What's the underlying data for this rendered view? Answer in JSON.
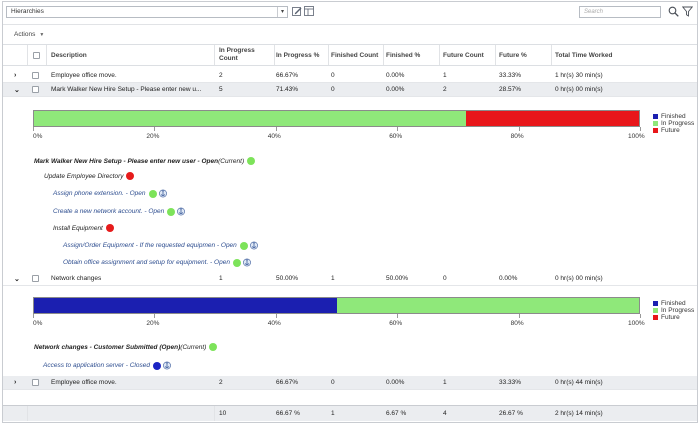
{
  "toolbar": {
    "hierarchy_value": "Hierarchies",
    "search_placeholder": "Search"
  },
  "actions_label": "Actions",
  "columns": {
    "description": "Description",
    "in_progress_count_1": "In Progress",
    "in_progress_count_2": "Count",
    "in_progress_pct": "In Progress %",
    "finished_count": "Finished Count",
    "finished_pct": "Finished %",
    "future_count": "Future Count",
    "future_pct": "Future %",
    "total_time": "Total Time Worked"
  },
  "rows": [
    {
      "expander": "›",
      "description": "Employee office move.",
      "in_progress_count": "2",
      "in_progress_pct": "66.67%",
      "finished_count": "0",
      "finished_pct": "0.00%",
      "future_count": "1",
      "future_pct": "33.33%",
      "total_time": "1 hr(s) 30 min(s)"
    },
    {
      "expander": "⌄",
      "description": "Mark Walker New Hire Setup - Please enter new u...",
      "in_progress_count": "5",
      "in_progress_pct": "71.43%",
      "finished_count": "0",
      "finished_pct": "0.00%",
      "future_count": "2",
      "future_pct": "28.57%",
      "total_time": "0 hr(s) 00 min(s)"
    },
    {
      "expander": "⌄",
      "description": "Network changes",
      "in_progress_count": "1",
      "in_progress_pct": "50.00%",
      "finished_count": "1",
      "finished_pct": "50.00%",
      "future_count": "0",
      "future_pct": "0.00%",
      "total_time": "0 hr(s) 00 min(s)"
    },
    {
      "expander": "›",
      "description": "Employee office move.",
      "in_progress_count": "2",
      "in_progress_pct": "66.67%",
      "finished_count": "0",
      "finished_pct": "0.00%",
      "future_count": "1",
      "future_pct": "33.33%",
      "total_time": "0 hr(s) 44 min(s)"
    }
  ],
  "totals": {
    "in_progress_count": "10",
    "in_progress_pct": "66.67 %",
    "finished_count": "1",
    "finished_pct": "6.67 %",
    "future_count": "4",
    "future_pct": "26.67 %",
    "total_time": "2 hr(s) 14 min(s)"
  },
  "colors": {
    "finished": "#1b1fb0",
    "in_progress": "#8fe87a",
    "future": "#e8161a",
    "dot_green": "#7de35a",
    "dot_red": "#e61b1b",
    "dot_blue": "#1b24c4"
  },
  "legend": {
    "finished": "Finished",
    "in_progress": "In Progress",
    "future": "Future"
  },
  "ticks": [
    "0%",
    "20%",
    "40%",
    "60%",
    "80%",
    "100%"
  ],
  "panel1": {
    "progress": {
      "finished": 0,
      "in_progress": 71.43,
      "future": 28.57
    },
    "tree": [
      {
        "label": "Mark Walker New Hire Setup - Please enter new user - Open",
        "suffix": " (Current)",
        "status": "green",
        "anchor": false
      },
      {
        "label": "Update Employee Directory",
        "suffix": "",
        "status": "red",
        "anchor": false
      },
      {
        "label": "Assign phone extension. - Open",
        "suffix": "",
        "status": "green",
        "anchor": true
      },
      {
        "label": "Create a new network account. - Open",
        "suffix": "",
        "status": "green",
        "anchor": true
      },
      {
        "label": "Install Equipment",
        "suffix": "",
        "status": "red",
        "anchor": false
      },
      {
        "label": "Assign/Order Equipment - If the requested equipmen - Open",
        "suffix": "",
        "status": "green",
        "anchor": true
      },
      {
        "label": "Obtain office assignment and setup for equipment. - Open",
        "suffix": "",
        "status": "green",
        "anchor": true
      }
    ]
  },
  "panel2": {
    "progress": {
      "finished": 50,
      "in_progress": 50,
      "future": 0
    },
    "tree": [
      {
        "label": "Network changes - Customer Submitted (Open)",
        "suffix": " (Current)",
        "status": "green",
        "anchor": false
      },
      {
        "label": "Access to application server - Closed",
        "suffix": "",
        "status": "blue",
        "anchor": true
      }
    ]
  }
}
